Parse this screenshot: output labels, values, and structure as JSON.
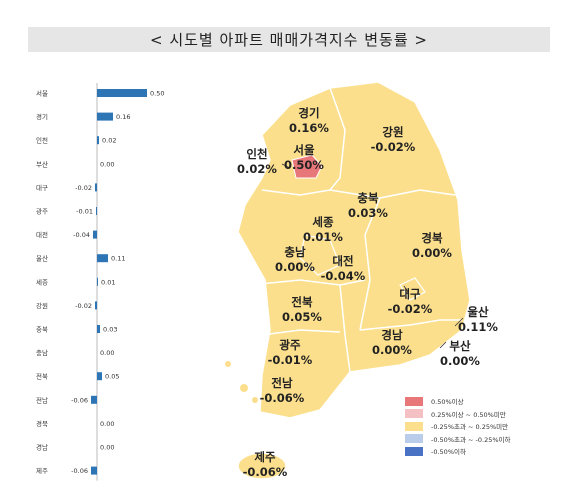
{
  "title": "< 시도별 아파트 매매가격지수 변동률 >",
  "chart_data": {
    "type": "bar",
    "orientation": "horizontal",
    "categories": [
      "서울",
      "경기",
      "인천",
      "부산",
      "대구",
      "광주",
      "대전",
      "울산",
      "세종",
      "강원",
      "충북",
      "충남",
      "전북",
      "전남",
      "경북",
      "경남",
      "제주"
    ],
    "values": [
      0.5,
      0.16,
      0.02,
      0.0,
      -0.02,
      -0.01,
      -0.04,
      0.11,
      0.01,
      -0.02,
      0.03,
      0.0,
      0.05,
      -0.06,
      0.0,
      0.0,
      -0.06
    ],
    "value_labels": [
      "0.50",
      "0.16",
      "0.02",
      "0.00",
      "-0.02",
      "-0.01",
      "-0.04",
      "0.11",
      "0.01",
      "-0.02",
      "0.03",
      "0.00",
      "0.05",
      "-0.06",
      "0.00",
      "0.00",
      "-0.06"
    ],
    "bar_color": "#2e75b6"
  },
  "map_labels": [
    {
      "region": "경기",
      "value": "0.16%"
    },
    {
      "region": "강원",
      "value": "-0.02%"
    },
    {
      "region": "인천",
      "value": "0.02%"
    },
    {
      "region": "서울",
      "value": "0.50%"
    },
    {
      "region": "충북",
      "value": "0.03%"
    },
    {
      "region": "세종",
      "value": "0.01%"
    },
    {
      "region": "충남",
      "value": "0.00%"
    },
    {
      "region": "대전",
      "value": "-0.04%"
    },
    {
      "region": "경북",
      "value": "0.00%"
    },
    {
      "region": "전북",
      "value": "0.05%"
    },
    {
      "region": "대구",
      "value": "-0.02%"
    },
    {
      "region": "울산",
      "value": "0.11%"
    },
    {
      "region": "광주",
      "value": "-0.01%"
    },
    {
      "region": "경남",
      "value": "0.00%"
    },
    {
      "region": "부산",
      "value": "0.00%"
    },
    {
      "region": "전남",
      "value": "-0.06%"
    },
    {
      "region": "제주",
      "value": "-0.06%"
    }
  ],
  "legend": [
    {
      "label": "0.50%이상",
      "color": "#e8777a"
    },
    {
      "label": "0.25%이상 ~ 0.50%미만",
      "color": "#f4c0c4"
    },
    {
      "label": "-0.25%초과 ~ 0.25%미만",
      "color": "#fbdf8c"
    },
    {
      "label": "-0.50%초과 ~ -0.25%이하",
      "color": "#b9cdea"
    },
    {
      "label": "-0.50%이하",
      "color": "#4a72c4"
    }
  ],
  "colors": {
    "land": "#fbdf8c",
    "border": "#ffffff",
    "seoul": "#e8777a"
  }
}
